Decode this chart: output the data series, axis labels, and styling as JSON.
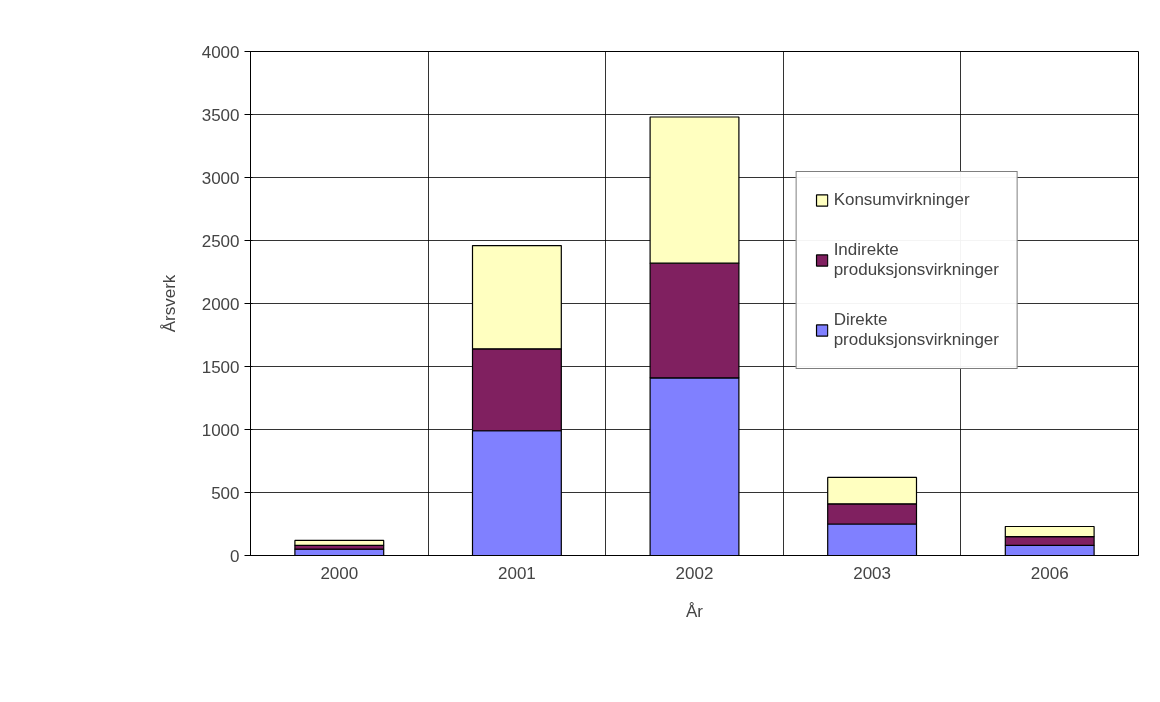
{
  "chart_data": {
    "type": "bar",
    "stacked": true,
    "xlabel": "År",
    "ylabel": "Årsverk",
    "categories": [
      "2000",
      "2001",
      "2002",
      "2003",
      "2006"
    ],
    "series": [
      {
        "name": "Direkte produksjonsvirkninger",
        "color": "#8080ff",
        "values": [
          50,
          990,
          1410,
          250,
          80
        ]
      },
      {
        "name": "Indirekte produksjonsvirkninger",
        "color": "#802060",
        "values": [
          30,
          650,
          910,
          160,
          70
        ]
      },
      {
        "name": "Konsumvirkninger",
        "color": "#ffffc0",
        "values": [
          40,
          820,
          1160,
          210,
          80
        ]
      }
    ],
    "ylim": [
      0,
      4000
    ],
    "yticks": [
      0,
      500,
      1000,
      1500,
      2000,
      2500,
      3000,
      3500,
      4000
    ],
    "grid": true,
    "legend": "top right"
  }
}
